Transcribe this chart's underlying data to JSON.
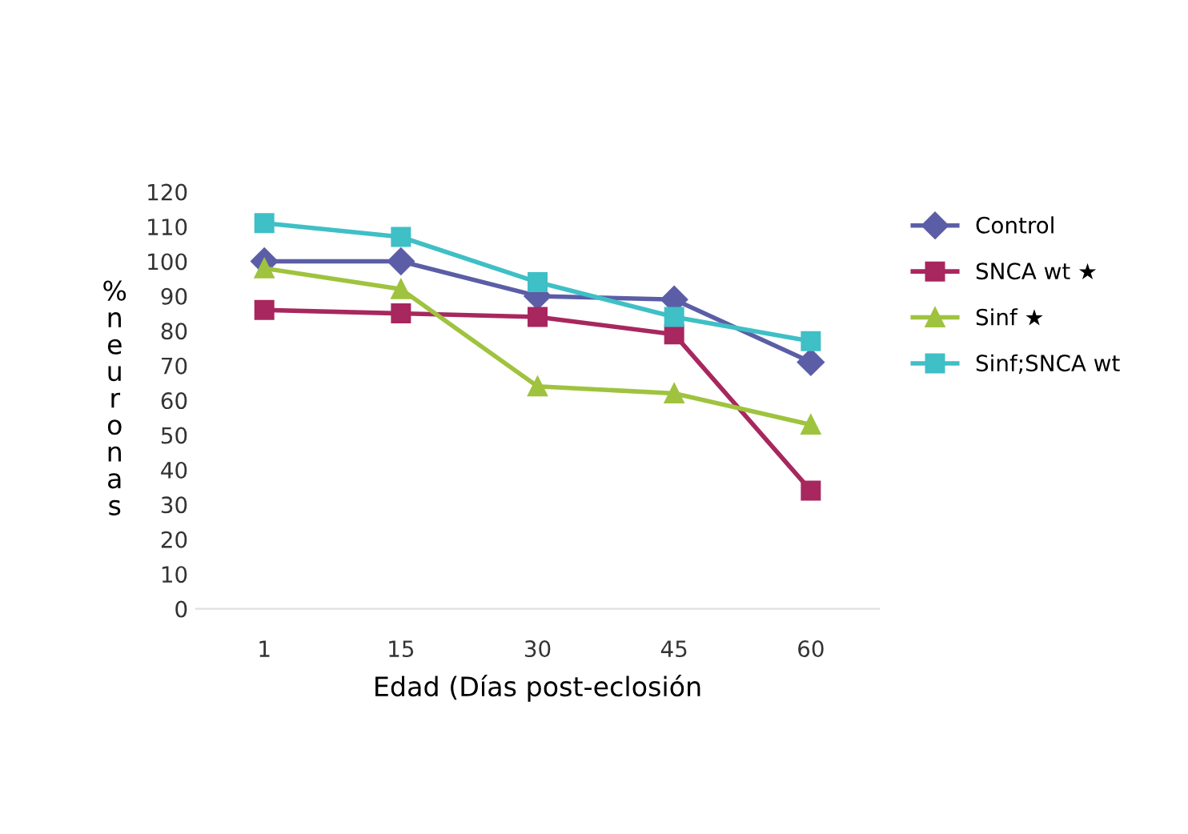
{
  "chart_data": {
    "type": "line",
    "xlabel": "Edad (Días post-eclosión",
    "ylabel": "% neuronas",
    "categories": [
      "1",
      "15",
      "30",
      "45",
      "60"
    ],
    "ylim": [
      0,
      120
    ],
    "yticks": [
      0,
      10,
      20,
      30,
      40,
      50,
      60,
      70,
      80,
      90,
      100,
      110,
      120
    ],
    "grid": false,
    "legend": "right",
    "series": [
      {
        "name": "Control",
        "color": "#5b5ea6",
        "marker": "diamond",
        "values": [
          100,
          100,
          90,
          89,
          71
        ]
      },
      {
        "name": "SNCA wt ★",
        "color": "#a8275e",
        "marker": "square",
        "values": [
          86,
          85,
          84,
          79,
          34
        ]
      },
      {
        "name": "Sinf ★",
        "color": "#9fc33e",
        "marker": "triangle",
        "values": [
          98,
          92,
          64,
          62,
          53
        ]
      },
      {
        "name": "Sinf;SNCA wt",
        "color": "#3fbfc6",
        "marker": "square",
        "values": [
          111,
          107,
          94,
          84,
          77
        ]
      }
    ]
  }
}
